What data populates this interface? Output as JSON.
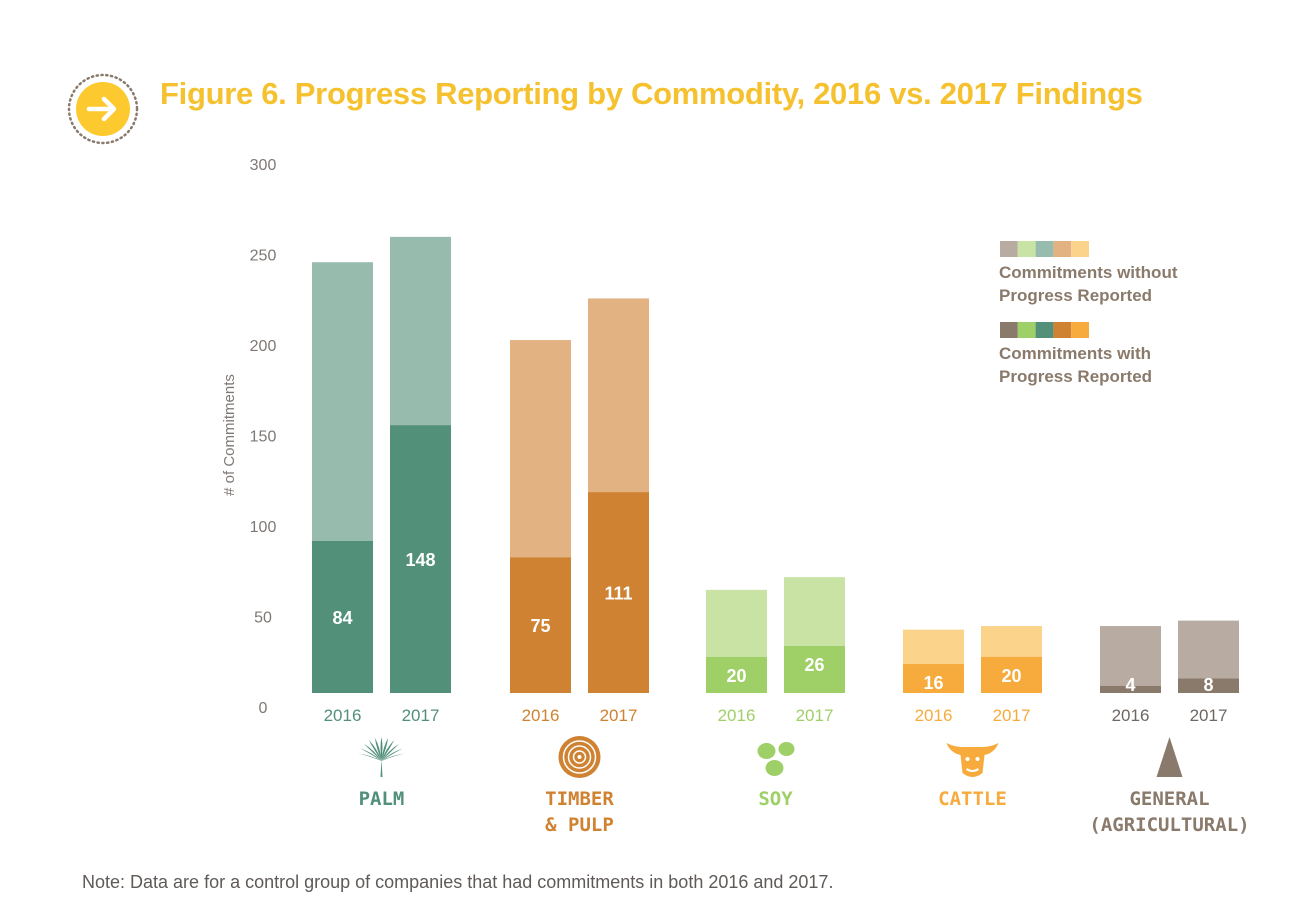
{
  "title": "Figure 6. Progress Reporting by Commodity, 2016 vs. 2017 Findings",
  "title_color": "#f6c12f",
  "note": "Note: Data are for a control group of companies that had commitments in both 2016 and 2017.",
  "title_icon": "arrow-right-icon",
  "chart_data": {
    "type": "bar",
    "stacked": true,
    "ylabel": "# of Commitments",
    "ylim": [
      0,
      300
    ],
    "yticks": [
      0,
      50,
      100,
      150,
      200,
      250,
      300
    ],
    "grid": false,
    "legend_position": "top-right",
    "legend": [
      {
        "label": "Commitments without Progress Reported",
        "lines": [
          "Commitments without",
          "Progress Reported"
        ],
        "swatches": [
          "#b8aca2",
          "#c8e3a4",
          "#97bcae",
          "#e2b283",
          "#fcd38b"
        ]
      },
      {
        "label": "Commitments with Progress Reported",
        "lines": [
          "Commitments with",
          "Progress Reported"
        ],
        "swatches": [
          "#8a7a6b",
          "#9fcf67",
          "#52907a",
          "#cf8231",
          "#f6ab3c"
        ]
      }
    ],
    "groups": [
      {
        "name": "PALM",
        "name_lines": [
          "PALM"
        ],
        "icon": "palm-leaf-icon",
        "color_with": "#52907a",
        "color_without": "#97bcae",
        "year_color": "#52907a",
        "bars": [
          {
            "year": "2016",
            "with_progress": 84,
            "total": 238
          },
          {
            "year": "2017",
            "with_progress": 148,
            "total": 252
          }
        ]
      },
      {
        "name": "TIMBER & PULP",
        "name_lines": [
          "TIMBER",
          "& PULP"
        ],
        "icon": "tree-rings-icon",
        "color_with": "#cf8231",
        "color_without": "#e2b283",
        "year_color": "#cf8231",
        "bars": [
          {
            "year": "2016",
            "with_progress": 75,
            "total": 195
          },
          {
            "year": "2017",
            "with_progress": 111,
            "total": 218
          }
        ]
      },
      {
        "name": "SOY",
        "name_lines": [
          "SOY"
        ],
        "icon": "soybeans-icon",
        "color_with": "#9fcf67",
        "color_without": "#c8e3a4",
        "year_color": "#9fcf67",
        "bars": [
          {
            "year": "2016",
            "with_progress": 20,
            "total": 57
          },
          {
            "year": "2017",
            "with_progress": 26,
            "total": 64
          }
        ]
      },
      {
        "name": "CATTLE",
        "name_lines": [
          "CATTLE"
        ],
        "icon": "cow-head-icon",
        "color_with": "#f6ab3c",
        "color_without": "#fcd38b",
        "year_color": "#f6ab3c",
        "bars": [
          {
            "year": "2016",
            "with_progress": 16,
            "total": 35
          },
          {
            "year": "2017",
            "with_progress": 20,
            "total": 37
          }
        ]
      },
      {
        "name": "GENERAL (AGRICULTURAL)",
        "name_lines": [
          "GENERAL",
          "(AGRICULTURAL)"
        ],
        "icon": "triangle-icon",
        "color_with": "#8a7a6b",
        "color_without": "#b8aca2",
        "year_color": "#6f6762",
        "bars": [
          {
            "year": "2016",
            "with_progress": 4,
            "total": 37
          },
          {
            "year": "2017",
            "with_progress": 8,
            "total": 40
          }
        ]
      }
    ]
  }
}
